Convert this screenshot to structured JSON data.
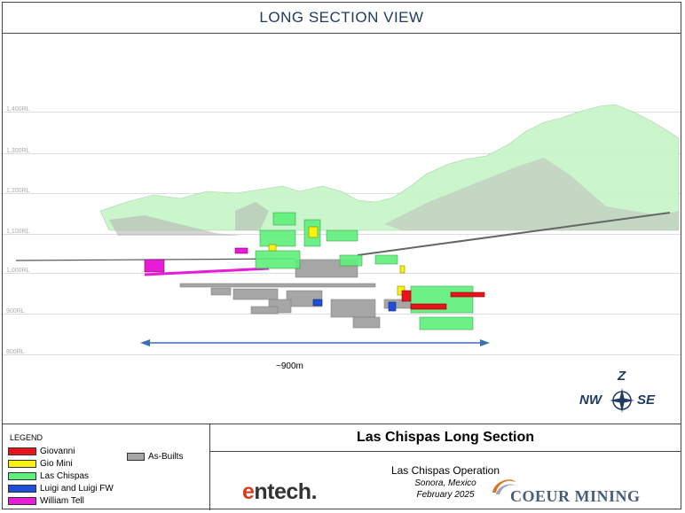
{
  "header": {
    "title": "LONG SECTION VIEW"
  },
  "section": {
    "rl_labels": [
      "1,400RL",
      "1,300RL",
      "1,200RL",
      "1,100RL",
      "1,000RL",
      "900RL",
      "800RL"
    ],
    "scale_label": "~900m",
    "compass": {
      "n": "Z",
      "w": "NW",
      "e": "SE"
    }
  },
  "legend": {
    "title": "LEGEND",
    "items": [
      {
        "label": "Giovanni",
        "color": "#e8141c"
      },
      {
        "label": "Gio Mini",
        "color": "#f7f20f"
      },
      {
        "label": "Las Chispas",
        "color": "#5ef07a"
      },
      {
        "label": "Luigi and Luigi FW",
        "color": "#1f4ed8"
      },
      {
        "label": "William Tell",
        "color": "#e61cd6"
      },
      {
        "label": "As-Builts",
        "color": "#a6a6a6"
      }
    ]
  },
  "title_block": {
    "title": "Las Chispas Long Section",
    "operation": "Las Chispas Operation",
    "location": "Sonora, Mexico",
    "date": "February 2025",
    "entech_prefix": "e",
    "entech_rest": "ntech.",
    "coeur": "COEUR MINING"
  }
}
